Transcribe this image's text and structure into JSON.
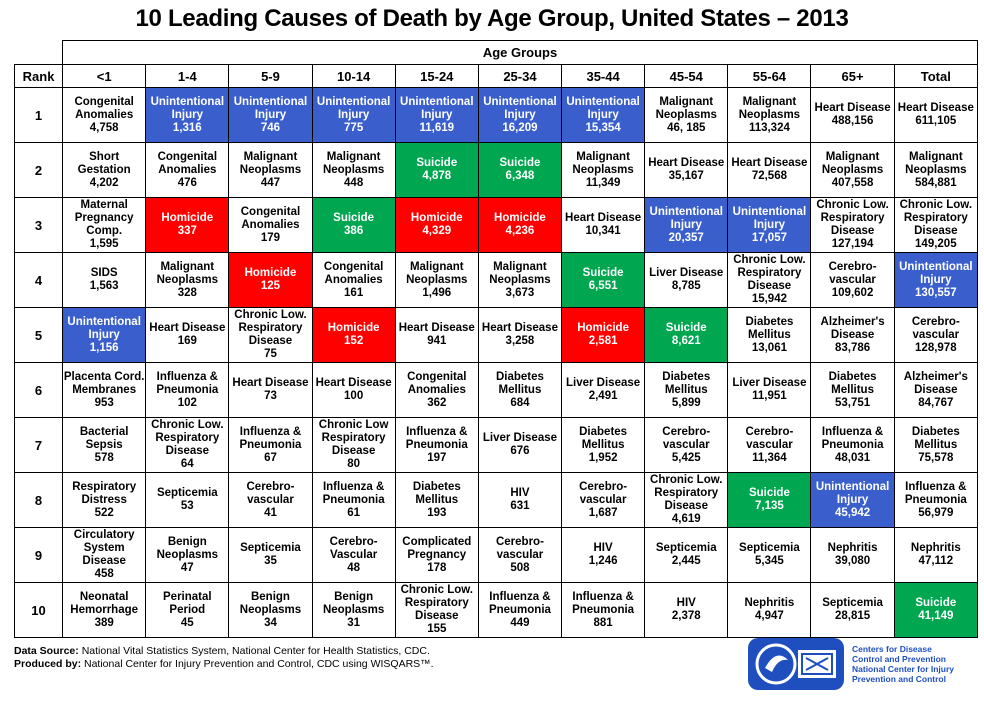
{
  "title": "10 Leading Causes of Death by Age Group, United States – 2013",
  "header": {
    "group_label": "Age Groups",
    "rank_label": "Rank",
    "columns": [
      "<1",
      "1-4",
      "5-9",
      "10-14",
      "15-24",
      "25-34",
      "35-44",
      "45-54",
      "55-64",
      "65+",
      "Total"
    ]
  },
  "colors": {
    "blue": "#3a5fcd",
    "red": "#ff0000",
    "green": "#00a650",
    "logo": "#1f4fbf"
  },
  "chart_data": {
    "type": "table",
    "title": "10 Leading Causes of Death by Age Group, United States – 2013",
    "columns": [
      "<1",
      "1-4",
      "5-9",
      "10-14",
      "15-24",
      "25-34",
      "35-44",
      "45-54",
      "55-64",
      "65+",
      "Total"
    ],
    "rows": [
      {
        "rank": "1",
        "cells": [
          {
            "cause": "Congenital Anomalies",
            "count": "4,758",
            "color": "plain"
          },
          {
            "cause": "Unintentional Injury",
            "count": "1,316",
            "color": "blue"
          },
          {
            "cause": "Unintentional Injury",
            "count": "746",
            "color": "blue"
          },
          {
            "cause": "Unintentional Injury",
            "count": "775",
            "color": "blue"
          },
          {
            "cause": "Unintentional Injury",
            "count": "11,619",
            "color": "blue"
          },
          {
            "cause": "Unintentional Injury",
            "count": "16,209",
            "color": "blue"
          },
          {
            "cause": "Unintentional Injury",
            "count": "15,354",
            "color": "blue"
          },
          {
            "cause": "Malignant Neoplasms",
            "count": "46, 185",
            "color": "plain"
          },
          {
            "cause": "Malignant Neoplasms",
            "count": "113,324",
            "color": "plain"
          },
          {
            "cause": "Heart Disease",
            "count": "488,156",
            "color": "plain"
          },
          {
            "cause": "Heart Disease",
            "count": "611,105",
            "color": "plain"
          }
        ]
      },
      {
        "rank": "2",
        "cells": [
          {
            "cause": "Short Gestation",
            "count": "4,202",
            "color": "plain"
          },
          {
            "cause": "Congenital Anomalies",
            "count": "476",
            "color": "plain"
          },
          {
            "cause": "Malignant Neoplasms",
            "count": "447",
            "color": "plain"
          },
          {
            "cause": "Malignant Neoplasms",
            "count": "448",
            "color": "plain"
          },
          {
            "cause": "Suicide",
            "count": "4,878",
            "color": "green"
          },
          {
            "cause": "Suicide",
            "count": "6,348",
            "color": "green"
          },
          {
            "cause": "Malignant Neoplasms",
            "count": "11,349",
            "color": "plain"
          },
          {
            "cause": "Heart Disease",
            "count": "35,167",
            "color": "plain"
          },
          {
            "cause": "Heart Disease",
            "count": "72,568",
            "color": "plain"
          },
          {
            "cause": "Malignant Neoplasms",
            "count": "407,558",
            "color": "plain"
          },
          {
            "cause": "Malignant Neoplasms",
            "count": "584,881",
            "color": "plain"
          }
        ]
      },
      {
        "rank": "3",
        "cells": [
          {
            "cause": "Maternal Pregnancy Comp.",
            "count": "1,595",
            "color": "plain"
          },
          {
            "cause": "Homicide",
            "count": "337",
            "color": "red"
          },
          {
            "cause": "Congenital Anomalies",
            "count": "179",
            "color": "plain"
          },
          {
            "cause": "Suicide",
            "count": "386",
            "color": "green"
          },
          {
            "cause": "Homicide",
            "count": "4,329",
            "color": "red"
          },
          {
            "cause": "Homicide",
            "count": "4,236",
            "color": "red"
          },
          {
            "cause": "Heart Disease",
            "count": "10,341",
            "color": "plain"
          },
          {
            "cause": "Unintentional Injury",
            "count": "20,357",
            "color": "blue"
          },
          {
            "cause": "Unintentional Injury",
            "count": "17,057",
            "color": "blue"
          },
          {
            "cause": "Chronic Low. Respiratory Disease",
            "count": "127,194",
            "color": "plain"
          },
          {
            "cause": "Chronic Low. Respiratory Disease",
            "count": "149,205",
            "color": "plain"
          }
        ]
      },
      {
        "rank": "4",
        "cells": [
          {
            "cause": "SIDS",
            "count": "1,563",
            "color": "plain"
          },
          {
            "cause": "Malignant Neoplasms",
            "count": "328",
            "color": "plain"
          },
          {
            "cause": "Homicide",
            "count": "125",
            "color": "red"
          },
          {
            "cause": "Congenital Anomalies",
            "count": "161",
            "color": "plain"
          },
          {
            "cause": "Malignant Neoplasms",
            "count": "1,496",
            "color": "plain"
          },
          {
            "cause": "Malignant Neoplasms",
            "count": "3,673",
            "color": "plain"
          },
          {
            "cause": "Suicide",
            "count": "6,551",
            "color": "green"
          },
          {
            "cause": "Liver Disease",
            "count": "8,785",
            "color": "plain"
          },
          {
            "cause": "Chronic Low. Respiratory Disease",
            "count": "15,942",
            "color": "plain"
          },
          {
            "cause": "Cerebro-vascular",
            "count": "109,602",
            "color": "plain"
          },
          {
            "cause": "Unintentional Injury",
            "count": "130,557",
            "color": "blue"
          }
        ]
      },
      {
        "rank": "5",
        "cells": [
          {
            "cause": "Unintentional Injury",
            "count": "1,156",
            "color": "blue"
          },
          {
            "cause": "Heart Disease",
            "count": "169",
            "color": "plain"
          },
          {
            "cause": "Chronic Low. Respiratory Disease",
            "count": "75",
            "color": "plain"
          },
          {
            "cause": "Homicide",
            "count": "152",
            "color": "red"
          },
          {
            "cause": "Heart Disease",
            "count": "941",
            "color": "plain"
          },
          {
            "cause": "Heart Disease",
            "count": "3,258",
            "color": "plain"
          },
          {
            "cause": "Homicide",
            "count": "2,581",
            "color": "red"
          },
          {
            "cause": "Suicide",
            "count": "8,621",
            "color": "green"
          },
          {
            "cause": "Diabetes Mellitus",
            "count": "13,061",
            "color": "plain"
          },
          {
            "cause": "Alzheimer's Disease",
            "count": "83,786",
            "color": "plain"
          },
          {
            "cause": "Cerebro-vascular",
            "count": "128,978",
            "color": "plain"
          }
        ]
      },
      {
        "rank": "6",
        "cells": [
          {
            "cause": "Placenta Cord. Membranes",
            "count": "953",
            "color": "plain"
          },
          {
            "cause": "Influenza & Pneumonia",
            "count": "102",
            "color": "plain"
          },
          {
            "cause": "Heart Disease",
            "count": "73",
            "color": "plain"
          },
          {
            "cause": "Heart Disease",
            "count": "100",
            "color": "plain"
          },
          {
            "cause": "Congenital Anomalies",
            "count": "362",
            "color": "plain"
          },
          {
            "cause": "Diabetes Mellitus",
            "count": "684",
            "color": "plain"
          },
          {
            "cause": "Liver Disease",
            "count": "2,491",
            "color": "plain"
          },
          {
            "cause": "Diabetes Mellitus",
            "count": "5,899",
            "color": "plain"
          },
          {
            "cause": "Liver Disease",
            "count": "11,951",
            "color": "plain"
          },
          {
            "cause": "Diabetes Mellitus",
            "count": "53,751",
            "color": "plain"
          },
          {
            "cause": "Alzheimer's Disease",
            "count": "84,767",
            "color": "plain"
          }
        ]
      },
      {
        "rank": "7",
        "cells": [
          {
            "cause": "Bacterial Sepsis",
            "count": "578",
            "color": "plain"
          },
          {
            "cause": "Chronic Low. Respiratory Disease",
            "count": "64",
            "color": "plain"
          },
          {
            "cause": "Influenza & Pneumonia",
            "count": "67",
            "color": "plain"
          },
          {
            "cause": "Chronic Low Respiratory Disease",
            "count": "80",
            "color": "plain"
          },
          {
            "cause": "Influenza & Pneumonia",
            "count": "197",
            "color": "plain"
          },
          {
            "cause": "Liver Disease",
            "count": "676",
            "color": "plain"
          },
          {
            "cause": "Diabetes Mellitus",
            "count": "1,952",
            "color": "plain"
          },
          {
            "cause": "Cerebro-vascular",
            "count": "5,425",
            "color": "plain"
          },
          {
            "cause": "Cerebro-vascular",
            "count": "11,364",
            "color": "plain"
          },
          {
            "cause": "Influenza & Pneumonia",
            "count": "48,031",
            "color": "plain"
          },
          {
            "cause": "Diabetes Mellitus",
            "count": "75,578",
            "color": "plain"
          }
        ]
      },
      {
        "rank": "8",
        "cells": [
          {
            "cause": "Respiratory Distress",
            "count": "522",
            "color": "plain"
          },
          {
            "cause": "Septicemia",
            "count": "53",
            "color": "plain"
          },
          {
            "cause": "Cerebro-vascular",
            "count": "41",
            "color": "plain"
          },
          {
            "cause": "Influenza & Pneumonia",
            "count": "61",
            "color": "plain"
          },
          {
            "cause": "Diabetes Mellitus",
            "count": "193",
            "color": "plain"
          },
          {
            "cause": "HIV",
            "count": "631",
            "color": "plain"
          },
          {
            "cause": "Cerebro-vascular",
            "count": "1,687",
            "color": "plain"
          },
          {
            "cause": "Chronic Low. Respiratory Disease",
            "count": "4,619",
            "color": "plain"
          },
          {
            "cause": "Suicide",
            "count": "7,135",
            "color": "green"
          },
          {
            "cause": "Unintentional Injury",
            "count": "45,942",
            "color": "blue"
          },
          {
            "cause": "Influenza & Pneumonia",
            "count": "56,979",
            "color": "plain"
          }
        ]
      },
      {
        "rank": "9",
        "cells": [
          {
            "cause": "Circulatory System Disease",
            "count": "458",
            "color": "plain"
          },
          {
            "cause": "Benign Neoplasms",
            "count": "47",
            "color": "plain"
          },
          {
            "cause": "Septicemia",
            "count": "35",
            "color": "plain"
          },
          {
            "cause": "Cerebro-Vascular",
            "count": "48",
            "color": "plain"
          },
          {
            "cause": "Complicated Pregnancy",
            "count": "178",
            "color": "plain"
          },
          {
            "cause": "Cerebro-vascular",
            "count": "508",
            "color": "plain"
          },
          {
            "cause": "HIV",
            "count": "1,246",
            "color": "plain"
          },
          {
            "cause": "Septicemia",
            "count": "2,445",
            "color": "plain"
          },
          {
            "cause": "Septicemia",
            "count": "5,345",
            "color": "plain"
          },
          {
            "cause": "Nephritis",
            "count": "39,080",
            "color": "plain"
          },
          {
            "cause": "Nephritis",
            "count": "47,112",
            "color": "plain"
          }
        ]
      },
      {
        "rank": "10",
        "cells": [
          {
            "cause": "Neonatal Hemorrhage",
            "count": "389",
            "color": "plain"
          },
          {
            "cause": "Perinatal Period",
            "count": "45",
            "color": "plain"
          },
          {
            "cause": "Benign Neoplasms",
            "count": "34",
            "color": "plain"
          },
          {
            "cause": "Benign Neoplasms",
            "count": "31",
            "color": "plain"
          },
          {
            "cause": "Chronic Low. Respiratory Disease",
            "count": "155",
            "color": "plain"
          },
          {
            "cause": "Influenza & Pneumonia",
            "count": "449",
            "color": "plain"
          },
          {
            "cause": "Influenza & Pneumonia",
            "count": "881",
            "color": "plain"
          },
          {
            "cause": "HIV",
            "count": "2,378",
            "color": "plain"
          },
          {
            "cause": "Nephritis",
            "count": "4,947",
            "color": "plain"
          },
          {
            "cause": "Septicemia",
            "count": "28,815",
            "color": "plain"
          },
          {
            "cause": "Suicide",
            "count": "41,149",
            "color": "green"
          }
        ]
      }
    ]
  },
  "footer": {
    "source_label": "Data Source:",
    "source_text": " National Vital Statistics System, National Center for Health Statistics, CDC.",
    "produced_label": "Produced by:",
    "produced_text": " National Center for Injury Prevention and Control, CDC using WISQARS™."
  },
  "logo": {
    "line1": "Centers for Disease",
    "line2": "Control and Prevention",
    "line3": "National Center for Injury",
    "line4": "Prevention and Control"
  }
}
